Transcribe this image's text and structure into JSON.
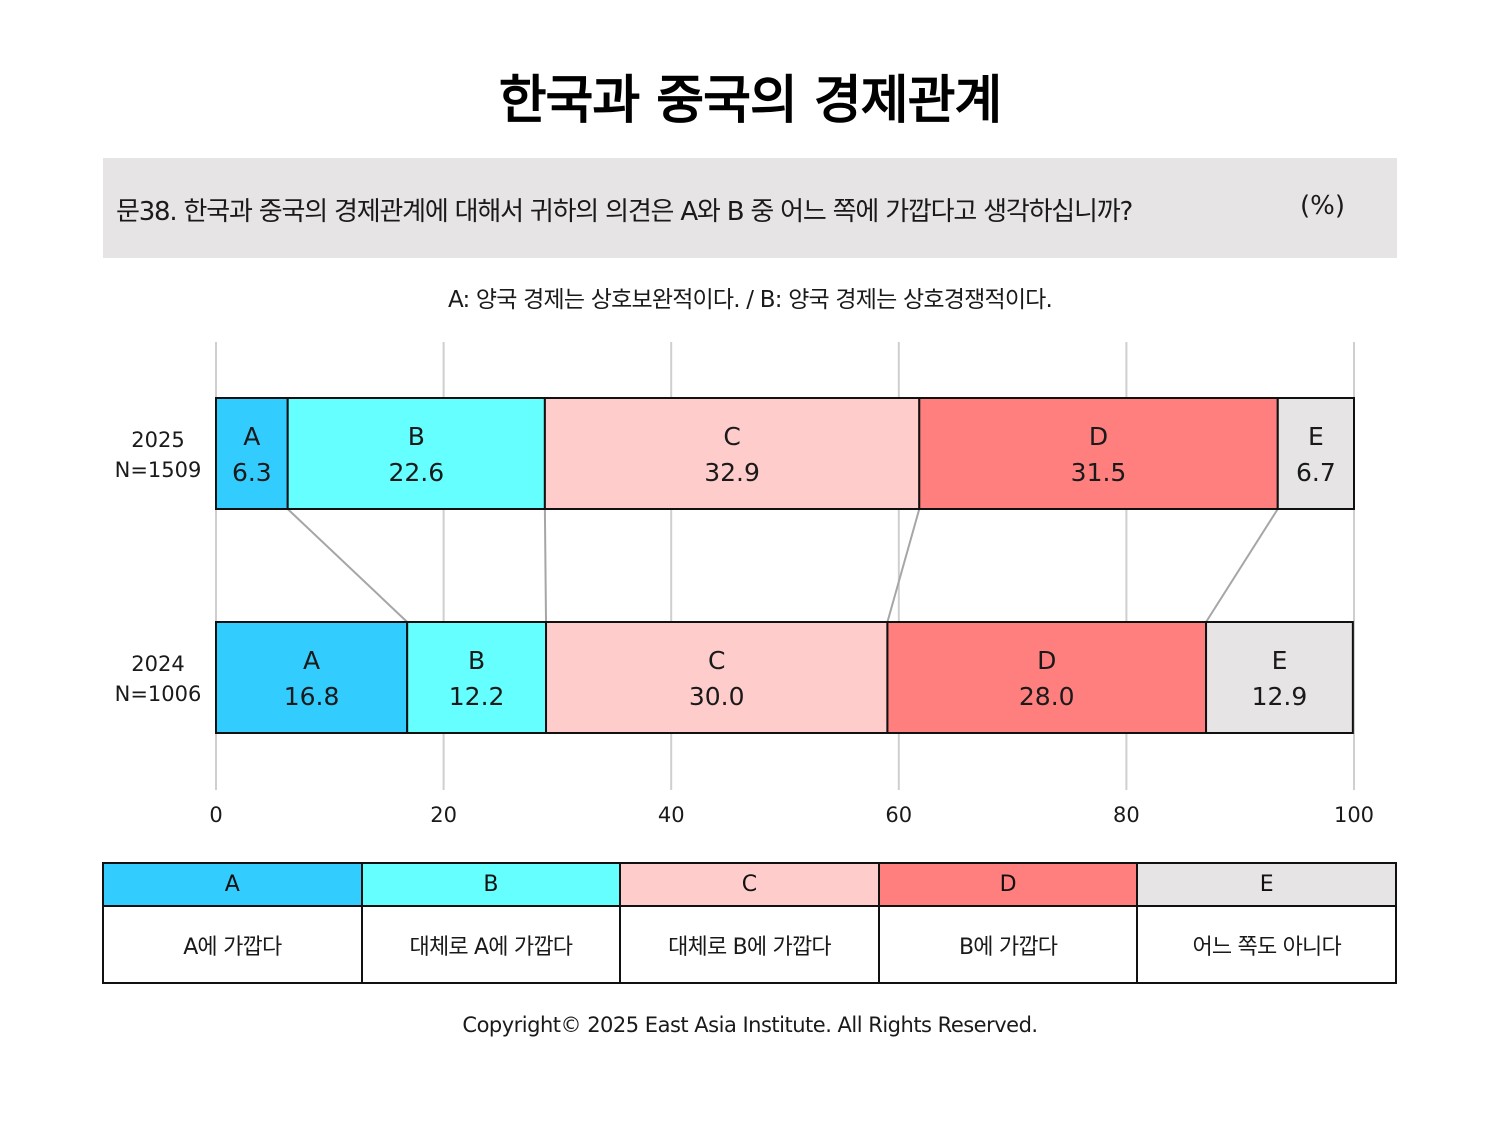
{
  "title": "한국과 중국의 경제관계",
  "question": "문38. 한국과 중국의 경제관계에 대해서 귀하의 의견은 A와 B 중 어느 쪽에 가깝다고 생각하십니까?",
  "unit": "(%)",
  "subtitle": "A: 양국 경제는 상호보완적이다. / B: 양국 경제는 상호경쟁적이다.",
  "chart_data": {
    "type": "bar",
    "orientation": "horizontal",
    "stacked": true,
    "categories": [
      {
        "year": "2025",
        "n": "N=1509"
      },
      {
        "year": "2024",
        "n": "N=1006"
      }
    ],
    "series": [
      {
        "name": "A",
        "color": "#33ccff",
        "values": [
          6.3,
          16.8
        ]
      },
      {
        "name": "B",
        "color": "#66ffff",
        "values": [
          22.6,
          12.2
        ]
      },
      {
        "name": "C",
        "color": "#ffcccc",
        "values": [
          32.9,
          30.0
        ]
      },
      {
        "name": "D",
        "color": "#ff7f7f",
        "values": [
          31.5,
          28.0
        ]
      },
      {
        "name": "E",
        "color": "#e6e4e5",
        "values": [
          6.7,
          12.9
        ]
      }
    ],
    "xlim": [
      0,
      100
    ],
    "xticks": [
      0,
      20,
      40,
      60,
      80,
      100
    ],
    "grid": true,
    "connector_lines": true
  },
  "legend": [
    {
      "key": "A",
      "color": "#33ccff",
      "desc": "A에 가깝다"
    },
    {
      "key": "B",
      "color": "#66ffff",
      "desc": "대체로 A에 가깝다"
    },
    {
      "key": "C",
      "color": "#ffcccc",
      "desc": "대체로 B에 가깝다"
    },
    {
      "key": "D",
      "color": "#ff7f7f",
      "desc": "B에 가깝다"
    },
    {
      "key": "E",
      "color": "#e6e4e5",
      "desc": "어느 쪽도 아니다"
    }
  ],
  "copyright": "Copyright© 2025 East Asia Institute. All Rights Reserved."
}
